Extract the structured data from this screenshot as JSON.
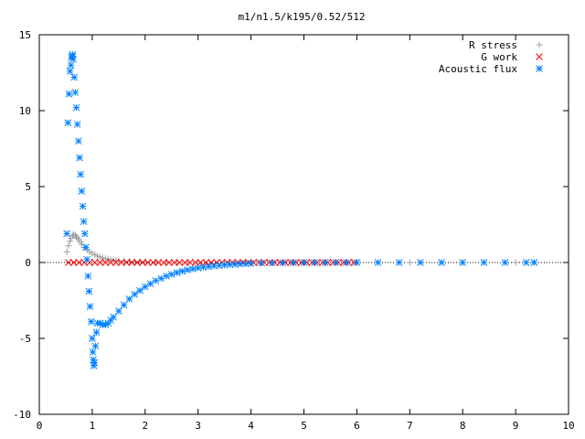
{
  "chart_data": {
    "type": "scatter",
    "title": "m1/n1.5/k195/0.52/512",
    "xlabel": "",
    "ylabel": "",
    "xlim": [
      0,
      10
    ],
    "ylim": [
      -10,
      15
    ],
    "xticks": [
      0,
      1,
      2,
      3,
      4,
      5,
      6,
      7,
      8,
      9,
      10
    ],
    "yticks": [
      -10,
      -5,
      0,
      5,
      10,
      15
    ],
    "xtick_labels": [
      "0",
      "1",
      "2",
      "3",
      "4",
      "5",
      "6",
      "7",
      "8",
      "9",
      "10"
    ],
    "ytick_labels": [
      "-10",
      "-5",
      "0",
      "5",
      "10",
      "15"
    ],
    "grid": false,
    "legend_position": "top-right",
    "series": [
      {
        "name": "R stress",
        "marker": "plus",
        "color": "#a0a0a0",
        "x": [
          0.52,
          0.55,
          0.58,
          0.6,
          0.63,
          0.65,
          0.68,
          0.7,
          0.72,
          0.75,
          0.78,
          0.8,
          0.85,
          0.9,
          0.95,
          1.0,
          1.05,
          1.1,
          1.15,
          1.2,
          1.25,
          1.3,
          1.35,
          1.4,
          1.45,
          1.5,
          1.6,
          1.7,
          1.8,
          1.9,
          2.0,
          2.2,
          2.4,
          2.6,
          2.8,
          3.0,
          3.5,
          4.0,
          5.0,
          6.0,
          7.0,
          8.0,
          9.0,
          9.35
        ],
        "y": [
          0.7,
          1.1,
          1.4,
          1.6,
          1.75,
          1.85,
          1.8,
          1.7,
          1.6,
          1.5,
          1.35,
          1.2,
          1.0,
          0.85,
          0.7,
          0.6,
          0.5,
          0.42,
          0.36,
          0.3,
          0.26,
          0.22,
          0.19,
          0.16,
          0.14,
          0.12,
          0.1,
          0.08,
          0.06,
          0.05,
          0.04,
          0.03,
          0.02,
          0.015,
          0.01,
          0.0,
          0.0,
          0.0,
          0.0,
          0.0,
          0.0,
          0.0,
          0.0,
          0.0
        ]
      },
      {
        "name": "G work",
        "marker": "cross",
        "color": "#ff0000",
        "x": [
          0.55,
          0.65,
          0.75,
          0.85,
          0.95,
          1.05,
          1.15,
          1.25,
          1.35,
          1.45,
          1.55,
          1.65,
          1.75,
          1.85,
          1.95,
          2.05,
          2.15,
          2.25,
          2.35,
          2.45,
          2.55,
          2.65,
          2.75,
          2.85,
          2.95,
          3.05,
          3.15,
          3.25,
          3.35,
          3.45,
          3.55,
          3.65,
          3.75,
          3.85,
          3.95,
          4.05,
          4.15,
          4.25,
          4.35,
          4.45,
          4.55,
          4.65,
          4.75,
          4.85,
          4.95,
          5.05,
          5.15,
          5.25,
          5.35,
          5.45,
          5.55,
          5.65,
          5.75,
          5.85,
          5.95
        ],
        "y": [
          0,
          0,
          0,
          0,
          0,
          0,
          0,
          0,
          0,
          0,
          0,
          0,
          0,
          0,
          0,
          0,
          0,
          0,
          0,
          0,
          0,
          0,
          0,
          0,
          0,
          0,
          0,
          0,
          0,
          0,
          0,
          0,
          0,
          0,
          0,
          0,
          0,
          0,
          0,
          0,
          0,
          0,
          0,
          0,
          0,
          0,
          0,
          0,
          0,
          0,
          0,
          0,
          0,
          0,
          0
        ]
      },
      {
        "name": "Acoustic flux",
        "marker": "star",
        "color": "#0080ff",
        "x": [
          0.52,
          0.54,
          0.56,
          0.58,
          0.6,
          0.61,
          0.62,
          0.63,
          0.64,
          0.66,
          0.68,
          0.7,
          0.72,
          0.74,
          0.76,
          0.78,
          0.8,
          0.82,
          0.84,
          0.86,
          0.88,
          0.9,
          0.92,
          0.94,
          0.96,
          0.98,
          1.0,
          1.01,
          1.02,
          1.03,
          1.04,
          1.06,
          1.08,
          1.1,
          1.15,
          1.2,
          1.25,
          1.3,
          1.35,
          1.4,
          1.5,
          1.6,
          1.7,
          1.8,
          1.9,
          2.0,
          2.1,
          2.2,
          2.3,
          2.4,
          2.5,
          2.6,
          2.7,
          2.8,
          2.9,
          3.0,
          3.1,
          3.2,
          3.3,
          3.4,
          3.5,
          3.6,
          3.7,
          3.8,
          3.9,
          4.0,
          4.2,
          4.4,
          4.6,
          4.8,
          5.0,
          5.2,
          5.4,
          5.6,
          5.8,
          6.0,
          6.4,
          6.8,
          7.2,
          7.6,
          8.0,
          8.4,
          8.8,
          9.2,
          9.35
        ],
        "y": [
          1.9,
          9.2,
          11.1,
          12.6,
          13.0,
          13.5,
          13.6,
          13.7,
          13.4,
          12.2,
          11.2,
          10.2,
          9.1,
          8.0,
          6.9,
          5.8,
          4.7,
          3.7,
          2.7,
          1.9,
          1.0,
          0.2,
          -0.9,
          -1.9,
          -2.9,
          -3.9,
          -5.0,
          -5.9,
          -6.4,
          -6.8,
          -6.6,
          -5.5,
          -4.6,
          -4.0,
          -4.0,
          -4.1,
          -4.1,
          -4.0,
          -3.8,
          -3.6,
          -3.2,
          -2.8,
          -2.4,
          -2.1,
          -1.85,
          -1.6,
          -1.4,
          -1.2,
          -1.05,
          -0.9,
          -0.78,
          -0.67,
          -0.57,
          -0.49,
          -0.42,
          -0.36,
          -0.31,
          -0.27,
          -0.23,
          -0.2,
          -0.17,
          -0.14,
          -0.12,
          -0.1,
          -0.08,
          -0.06,
          -0.04,
          -0.03,
          -0.02,
          -0.01,
          0.0,
          0.0,
          0.0,
          0.0,
          0.0,
          0.0,
          0.0,
          0.0,
          0.0,
          0.0,
          0.0,
          0.0,
          0.0,
          0.0,
          0.0
        ]
      }
    ]
  }
}
